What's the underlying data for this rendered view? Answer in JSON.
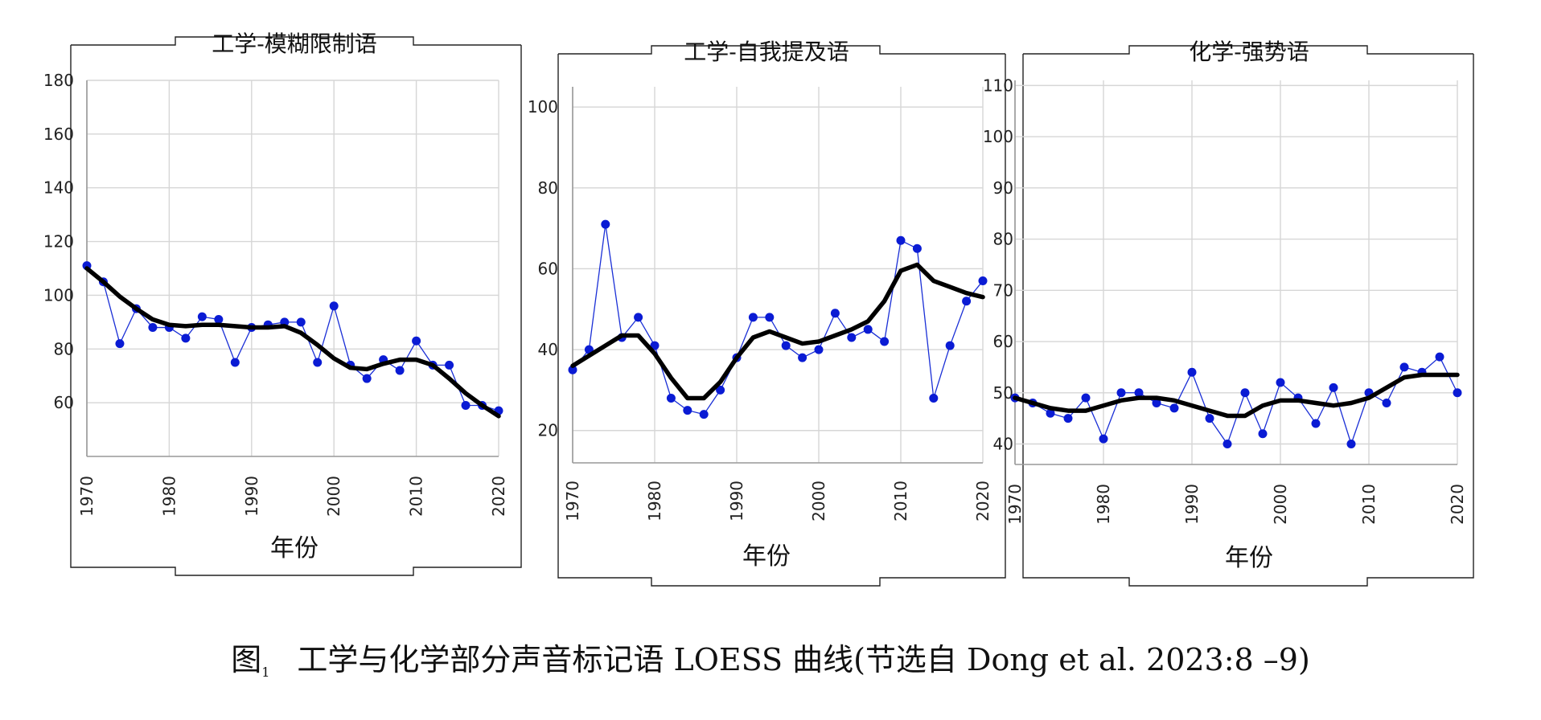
{
  "caption": {
    "prefix": "图",
    "number": "1",
    "text": "工学与化学部分声音标记语 LOESS 曲线(节选自 Dong et al. 2023:8 –9)"
  },
  "colors": {
    "raw_line": "#1a2fd6",
    "raw_point": "#0a1bd4",
    "loess_line": "#000000",
    "grid": "#d6d6d6",
    "axis": "#999999",
    "frame": "#222222"
  },
  "chart_data": [
    {
      "type": "line",
      "title": "工学-模糊限制语",
      "xlabel": "年份",
      "ylabel": "",
      "xlim": [
        1970,
        2020
      ],
      "ylim": [
        40,
        180
      ],
      "xticks": [
        1970,
        1980,
        1990,
        2000,
        2010,
        2020
      ],
      "yticks": [
        60,
        80,
        100,
        120,
        140,
        160,
        180
      ],
      "grid": true,
      "series": [
        {
          "style": "raw-points",
          "x": [
            1970,
            1972,
            1974,
            1976,
            1978,
            1980,
            1982,
            1984,
            1986,
            1988,
            1990,
            1992,
            1994,
            1996,
            1998,
            2000,
            2002,
            2004,
            2006,
            2008,
            2010,
            2012,
            2014,
            2016,
            2018,
            2020
          ],
          "y": [
            111,
            105,
            82,
            95,
            88,
            88,
            84,
            92,
            91,
            75,
            88,
            89,
            90,
            90,
            75,
            96,
            74,
            69,
            76,
            72,
            83,
            74,
            74,
            59,
            59,
            57
          ]
        },
        {
          "style": "loess",
          "x": [
            1970,
            1972,
            1974,
            1976,
            1978,
            1980,
            1982,
            1984,
            1986,
            1988,
            1990,
            1992,
            1994,
            1996,
            1998,
            2000,
            2002,
            2004,
            2006,
            2008,
            2010,
            2012,
            2014,
            2016,
            2018,
            2020
          ],
          "y": [
            110,
            105,
            99.5,
            95,
            91,
            89,
            88.5,
            89,
            89,
            88.5,
            88,
            88,
            88.5,
            86,
            81.5,
            76.5,
            73,
            72.5,
            74.5,
            76,
            76,
            74,
            69,
            63.5,
            59,
            55
          ]
        }
      ]
    },
    {
      "type": "line",
      "title": "工学-自我提及语",
      "xlabel": "年份",
      "ylabel": "",
      "xlim": [
        1970,
        2020
      ],
      "ylim": [
        12,
        105
      ],
      "xticks": [
        1970,
        1980,
        1990,
        2000,
        2010,
        2020
      ],
      "yticks": [
        20,
        40,
        60,
        80,
        100
      ],
      "grid": true,
      "series": [
        {
          "style": "raw-points",
          "x": [
            1970,
            1972,
            1974,
            1976,
            1978,
            1980,
            1982,
            1984,
            1986,
            1988,
            1990,
            1992,
            1994,
            1996,
            1998,
            2000,
            2002,
            2004,
            2006,
            2008,
            2010,
            2012,
            2014,
            2016,
            2018,
            2020
          ],
          "y": [
            35,
            40,
            71,
            43,
            48,
            41,
            28,
            25,
            24,
            30,
            38,
            48,
            48,
            41,
            38,
            40,
            49,
            43,
            45,
            42,
            67,
            65,
            28,
            41,
            52,
            57
          ]
        },
        {
          "style": "loess",
          "x": [
            1970,
            1972,
            1974,
            1976,
            1978,
            1980,
            1982,
            1984,
            1986,
            1988,
            1990,
            1992,
            1994,
            1996,
            1998,
            2000,
            2002,
            2004,
            2006,
            2008,
            2010,
            2012,
            2014,
            2016,
            2018,
            2020
          ],
          "y": [
            36,
            38.5,
            41,
            43.5,
            43.5,
            39,
            33,
            28,
            28,
            32,
            38,
            43,
            44.5,
            43,
            41.5,
            42,
            43.5,
            45,
            47,
            52,
            59.5,
            61,
            57,
            55.5,
            54,
            53
          ]
        }
      ]
    },
    {
      "type": "line",
      "title": "化学-强势语",
      "xlabel": "年份",
      "ylabel": "",
      "xlim": [
        1970,
        2020
      ],
      "ylim": [
        36,
        111
      ],
      "xticks": [
        1970,
        1980,
        1990,
        2000,
        2010,
        2020
      ],
      "yticks": [
        40,
        50,
        60,
        70,
        80,
        90,
        100,
        110
      ],
      "grid": true,
      "series": [
        {
          "style": "raw-points",
          "x": [
            1970,
            1972,
            1974,
            1976,
            1978,
            1980,
            1982,
            1984,
            1986,
            1988,
            1990,
            1992,
            1994,
            1996,
            1998,
            2000,
            2002,
            2004,
            2006,
            2008,
            2010,
            2012,
            2014,
            2016,
            2018,
            2020
          ],
          "y": [
            49,
            48,
            46,
            45,
            49,
            41,
            50,
            50,
            48,
            47,
            54,
            45,
            40,
            50,
            42,
            52,
            49,
            44,
            51,
            40,
            50,
            48,
            55,
            54,
            57,
            50
          ]
        },
        {
          "style": "loess",
          "x": [
            1970,
            1972,
            1974,
            1976,
            1978,
            1980,
            1982,
            1984,
            1986,
            1988,
            1990,
            1992,
            1994,
            1996,
            1998,
            2000,
            2002,
            2004,
            2006,
            2008,
            2010,
            2012,
            2014,
            2016,
            2018,
            2020
          ],
          "y": [
            49,
            48,
            47,
            46.5,
            46.5,
            47.5,
            48.5,
            49,
            49,
            48.5,
            47.5,
            46.5,
            45.5,
            45.5,
            47.5,
            48.5,
            48.5,
            48,
            47.5,
            48,
            49,
            51,
            53,
            53.5,
            53.5,
            53.5
          ]
        }
      ]
    }
  ]
}
